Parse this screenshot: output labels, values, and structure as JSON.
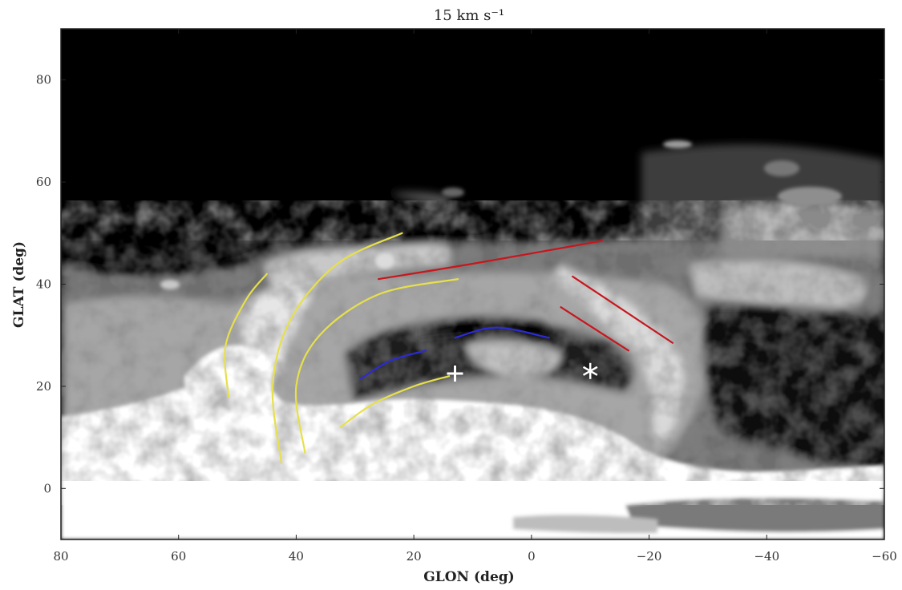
{
  "chart_data": {
    "type": "heatmap",
    "title": "15 km s⁻¹",
    "xlabel": "GLON (deg)",
    "ylabel": "GLAT (deg)",
    "xlim": [
      80,
      -60
    ],
    "ylim": [
      -10,
      90
    ],
    "x_ticks": [
      {
        "value": 80,
        "label": "80"
      },
      {
        "value": 60,
        "label": "60"
      },
      {
        "value": 40,
        "label": "40"
      },
      {
        "value": 20,
        "label": "20"
      },
      {
        "value": 0,
        "label": "0"
      },
      {
        "value": -20,
        "label": "−20"
      },
      {
        "value": -40,
        "label": "−40"
      },
      {
        "value": -60,
        "label": "−60"
      }
    ],
    "y_ticks": [
      {
        "value": 0,
        "label": "0"
      },
      {
        "value": 20,
        "label": "20"
      },
      {
        "value": 40,
        "label": "40"
      },
      {
        "value": 60,
        "label": "60"
      },
      {
        "value": 80,
        "label": "80"
      }
    ],
    "colormap": "grayscale",
    "colors": {
      "background": "#000000",
      "high": "#ffffff",
      "yellow": "#e7e04a",
      "red": "#c8161d",
      "blue": "#2b2bd6"
    },
    "overlay_arcs": [
      {
        "color": "yellow",
        "points": [
          [
            51.5,
            18
          ],
          [
            52,
            28
          ],
          [
            48.5,
            37
          ],
          [
            45,
            42
          ]
        ]
      },
      {
        "color": "yellow",
        "points": [
          [
            42.5,
            5
          ],
          [
            44,
            20
          ],
          [
            41,
            33
          ],
          [
            33,
            44
          ],
          [
            22,
            50
          ]
        ]
      },
      {
        "color": "yellow",
        "points": [
          [
            38.5,
            7
          ],
          [
            40,
            20
          ],
          [
            36,
            30
          ],
          [
            26,
            38
          ],
          [
            12.5,
            41
          ]
        ]
      },
      {
        "color": "yellow",
        "points": [
          [
            32.5,
            12
          ],
          [
            27,
            16.5
          ],
          [
            20,
            20
          ],
          [
            14,
            22
          ]
        ]
      },
      {
        "color": "red",
        "points": [
          [
            26,
            41
          ],
          [
            10,
            44
          ],
          [
            -12,
            48.5
          ]
        ]
      },
      {
        "color": "red",
        "points": [
          [
            -7,
            41.5
          ],
          [
            -24,
            28.5
          ]
        ]
      },
      {
        "color": "red",
        "points": [
          [
            -5,
            35.5
          ],
          [
            -16.5,
            27
          ]
        ]
      },
      {
        "color": "blue",
        "points": [
          [
            29,
            21.5
          ],
          [
            24,
            25
          ],
          [
            18,
            27
          ]
        ]
      },
      {
        "color": "blue",
        "points": [
          [
            13,
            29.5
          ],
          [
            6,
            31.5
          ],
          [
            -3,
            29.5
          ]
        ]
      }
    ],
    "markers": [
      {
        "symbol": "plus",
        "glon": 13,
        "glat": 22.5,
        "color": "white"
      },
      {
        "symbol": "asterisk",
        "glon": -10,
        "glat": 23,
        "color": "white"
      }
    ]
  }
}
